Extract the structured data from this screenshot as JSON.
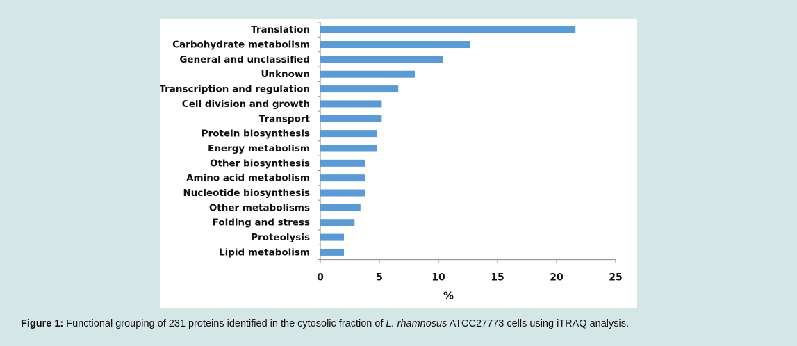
{
  "chart_data": {
    "type": "bar",
    "orientation": "horizontal",
    "categories": [
      "Translation",
      "Carbohydrate metabolism",
      "General and unclassified",
      "Unknown",
      "Transcription and regulation",
      "Cell division and growth",
      "Transport",
      "Protein biosynthesis",
      "Energy metabolism",
      "Other biosynthesis",
      "Amino acid metabolism",
      "Nucleotide biosynthesis",
      "Other metabolisms",
      "Folding and stress",
      "Proteolysis",
      "Lipid metabolism"
    ],
    "values": [
      21.6,
      12.7,
      10.4,
      8.0,
      6.6,
      5.2,
      5.2,
      4.8,
      4.8,
      3.8,
      3.8,
      3.8,
      3.4,
      2.9,
      2.0,
      2.0
    ],
    "xlabel": "%",
    "ylabel": "",
    "xlim": [
      0,
      25
    ],
    "xticks": [
      0,
      5,
      10,
      15,
      20,
      25
    ],
    "bar_color": "#5b9bd5",
    "grid": false,
    "legend": "none"
  },
  "caption": {
    "label": "Figure 1:",
    "text_before": " Functional grouping of 231 proteins identified in the cytosolic fraction of ",
    "species": "L. rhamnosus",
    "text_after": " ATCC27773 cells using iTRAQ analysis."
  }
}
